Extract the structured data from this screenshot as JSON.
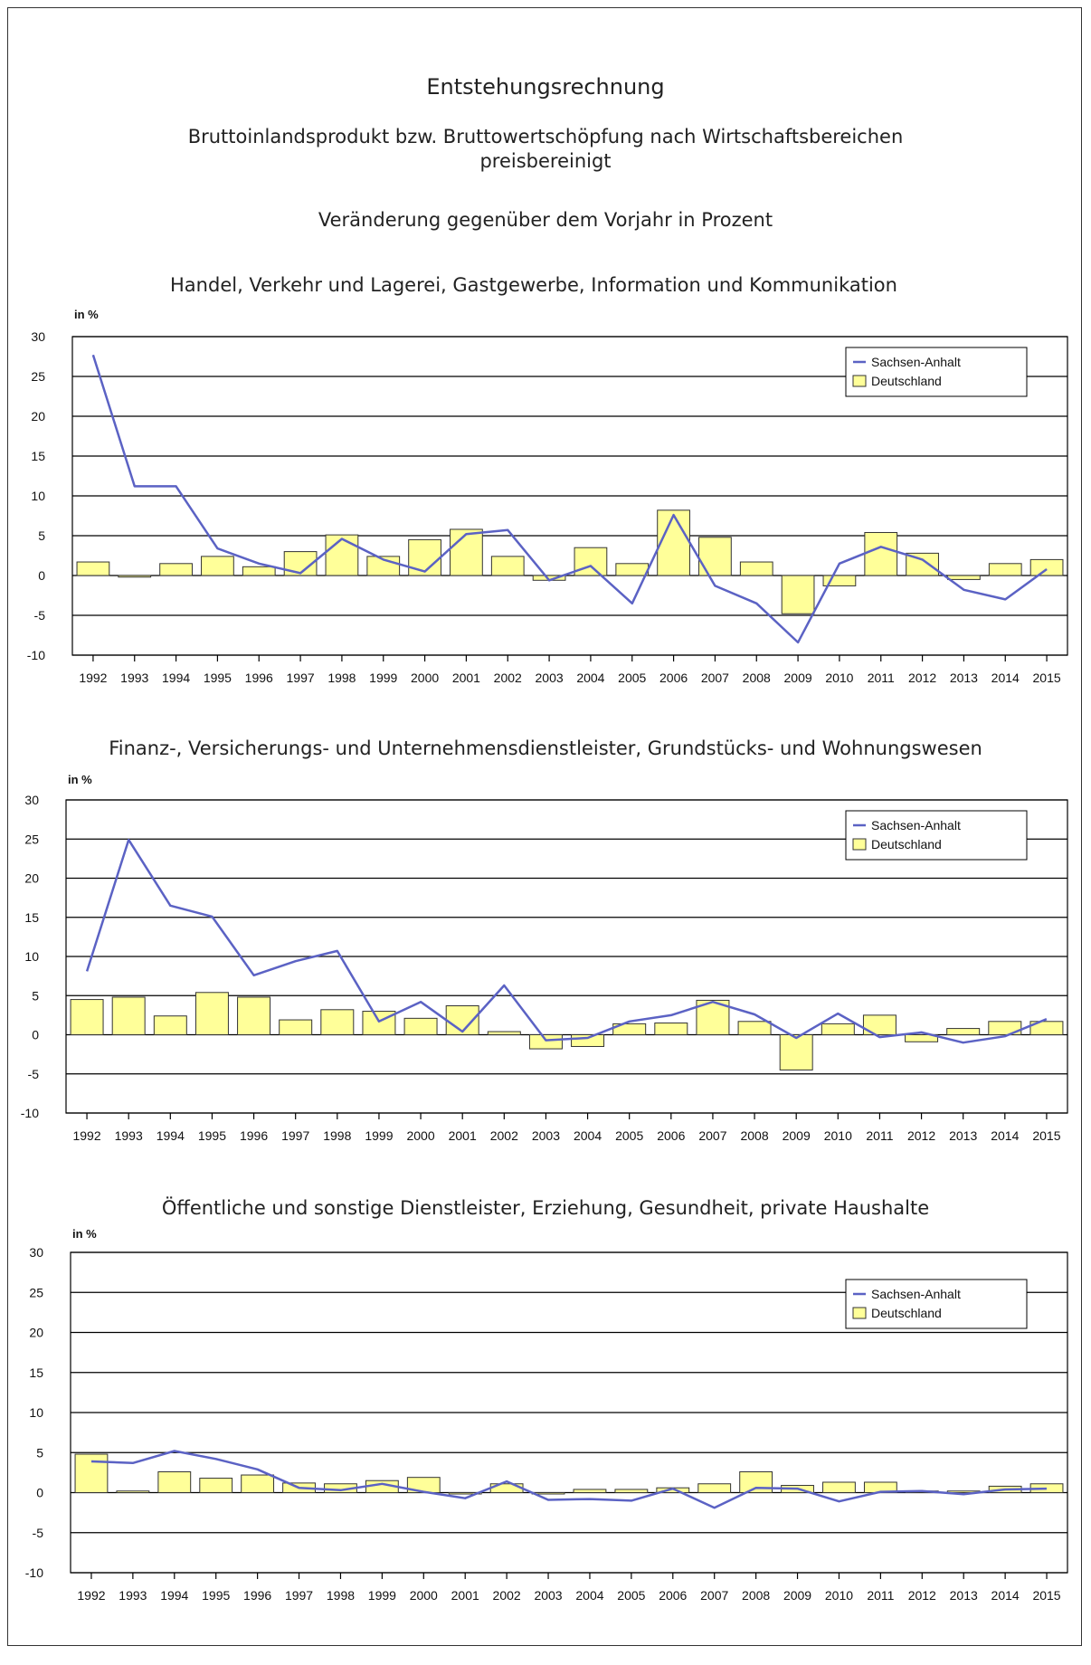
{
  "header": {
    "title": "Entstehungsrechnung",
    "subtitle_line1": "Bruttoinlandsprodukt bzw. Bruttowertschöpfung nach Wirtschaftsbereichen",
    "subtitle_line2": "preisbereinigt",
    "subtitle2": "Veränderung gegenüber dem Vorjahr in Prozent"
  },
  "colors": {
    "line": "#5b62c4",
    "bar_fill": "#ffff99",
    "bar_stroke": "#333333",
    "grid": "#000000"
  },
  "chart_data": [
    {
      "type": "bar",
      "title": "Handel, Verkehr und Lagerei, Gastgewerbe, Information und Kommunikation",
      "ylabel": "in %",
      "ylim": [
        -10,
        30
      ],
      "yticks": [
        30,
        25,
        20,
        15,
        10,
        5,
        0,
        -5,
        -10
      ],
      "grid": true,
      "legend_position": "top-right",
      "categories": [
        "1992",
        "1993",
        "1994",
        "1995",
        "1996",
        "1997",
        "1998",
        "1999",
        "2000",
        "2001",
        "2002",
        "2003",
        "2004",
        "2005",
        "2006",
        "2007",
        "2008",
        "2009",
        "2010",
        "2011",
        "2012",
        "2013",
        "2014",
        "2015"
      ],
      "series": [
        {
          "name": "Sachsen-Anhalt",
          "type": "line",
          "values": [
            27.7,
            11.2,
            11.2,
            3.4,
            1.5,
            0.3,
            4.6,
            2.0,
            0.5,
            5.2,
            5.7,
            -0.6,
            1.2,
            -3.5,
            7.6,
            -1.3,
            -3.5,
            -8.4,
            1.5,
            3.6,
            2.0,
            -1.8,
            -3.0,
            0.8
          ]
        },
        {
          "name": "Deutschland",
          "type": "bar",
          "values": [
            1.7,
            -0.2,
            1.5,
            2.4,
            1.1,
            3.0,
            5.1,
            2.4,
            4.5,
            5.8,
            2.4,
            -0.6,
            3.5,
            1.5,
            8.2,
            4.8,
            1.7,
            -4.8,
            -1.3,
            5.4,
            2.8,
            -0.5,
            1.5,
            2.0
          ]
        }
      ]
    },
    {
      "type": "bar",
      "title": "Finanz-, Versicherungs- und Unternehmensdienstleister, Grundstücks- und Wohnungswesen",
      "ylabel": "in %",
      "ylim": [
        -10,
        30
      ],
      "yticks": [
        30,
        25,
        20,
        15,
        10,
        5,
        0,
        -5,
        -10
      ],
      "grid": true,
      "legend_position": "top-right",
      "categories": [
        "1992",
        "1993",
        "1994",
        "1995",
        "1996",
        "1997",
        "1998",
        "1999",
        "2000",
        "2001",
        "2002",
        "2003",
        "2004",
        "2005",
        "2006",
        "2007",
        "2008",
        "2009",
        "2010",
        "2011",
        "2012",
        "2013",
        "2014",
        "2015"
      ],
      "series": [
        {
          "name": "Sachsen-Anhalt",
          "type": "line",
          "values": [
            8.1,
            24.9,
            16.5,
            15.1,
            7.6,
            9.4,
            10.7,
            1.7,
            4.2,
            0.4,
            6.3,
            -0.7,
            -0.4,
            1.7,
            2.5,
            4.2,
            2.6,
            -0.4,
            2.7,
            -0.3,
            0.3,
            -1.0,
            -0.2,
            2.0
          ]
        },
        {
          "name": "Deutschland",
          "type": "bar",
          "values": [
            4.5,
            4.8,
            2.4,
            5.4,
            4.8,
            1.9,
            3.2,
            3.0,
            2.1,
            3.7,
            0.4,
            -1.8,
            -1.5,
            1.4,
            1.5,
            4.4,
            1.7,
            -4.5,
            1.4,
            2.5,
            -0.9,
            0.8,
            1.7,
            1.7
          ]
        }
      ]
    },
    {
      "type": "bar",
      "title": "Öffentliche und sonstige Dienstleister, Erziehung, Gesundheit, private Haushalte",
      "ylabel": "in %",
      "ylim": [
        -10,
        30
      ],
      "yticks": [
        30,
        25,
        20,
        15,
        10,
        5,
        0,
        -5,
        -10
      ],
      "grid": true,
      "legend_position": "top-right",
      "categories": [
        "1992",
        "1993",
        "1994",
        "1995",
        "1996",
        "1997",
        "1998",
        "1999",
        "2000",
        "2001",
        "2002",
        "2003",
        "2004",
        "2005",
        "2006",
        "2007",
        "2008",
        "2009",
        "2010",
        "2011",
        "2012",
        "2013",
        "2014",
        "2015"
      ],
      "series": [
        {
          "name": "Sachsen-Anhalt",
          "type": "line",
          "values": [
            3.9,
            3.7,
            5.2,
            4.2,
            2.9,
            0.6,
            0.3,
            1.1,
            0.1,
            -0.7,
            1.4,
            -0.9,
            -0.8,
            -1.0,
            0.5,
            -1.9,
            0.6,
            0.5,
            -1.1,
            0.1,
            0.2,
            -0.2,
            0.4,
            0.5
          ]
        },
        {
          "name": "Deutschland",
          "type": "bar",
          "values": [
            4.8,
            0.2,
            2.6,
            1.8,
            2.2,
            1.2,
            1.1,
            1.5,
            1.9,
            0.0,
            1.1,
            0.0,
            0.4,
            0.4,
            0.6,
            1.1,
            2.6,
            0.9,
            1.3,
            1.3,
            0.2,
            0.2,
            0.8,
            1.1
          ]
        }
      ]
    }
  ]
}
